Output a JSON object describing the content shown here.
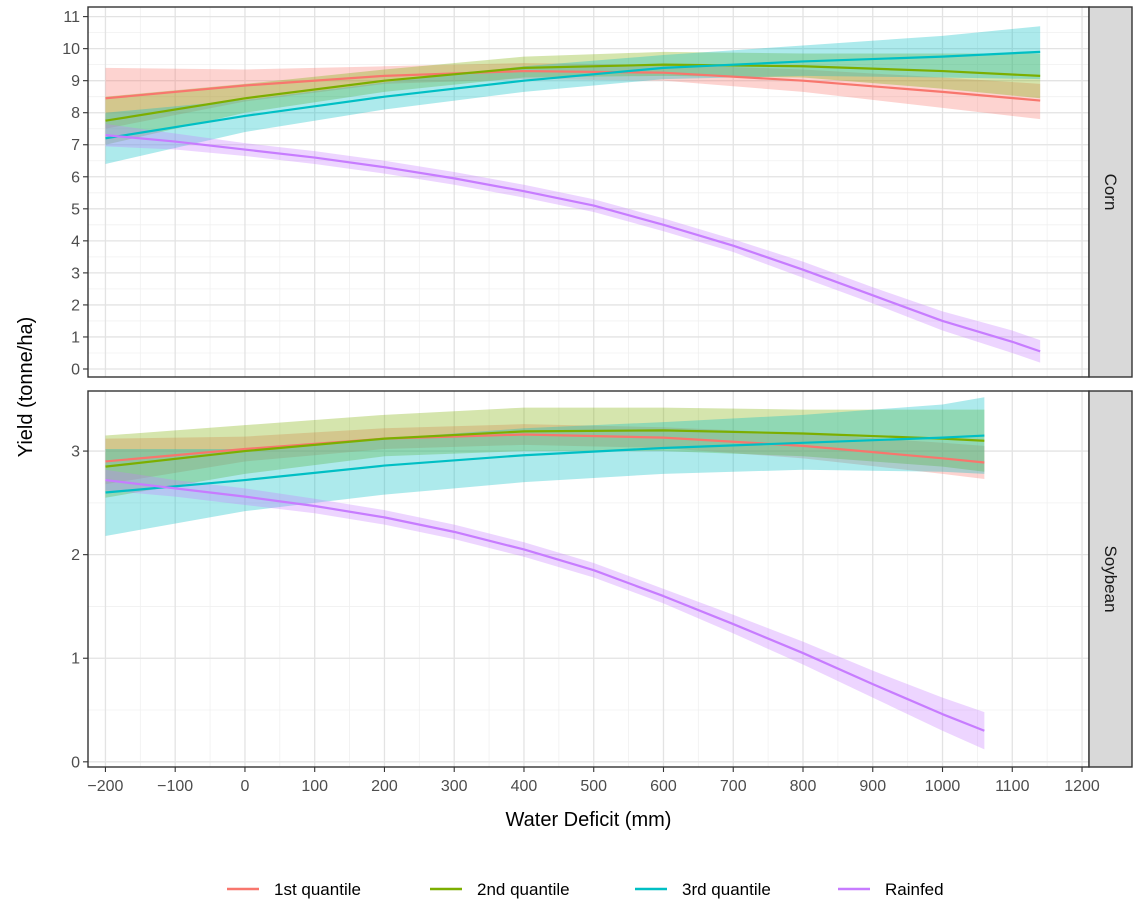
{
  "chart_data": {
    "type": "line",
    "xlabel": "Water Deficit (mm)",
    "ylabel": "Yield (tonne/ha)",
    "x_ticks": [
      -200,
      -100,
      0,
      100,
      200,
      300,
      400,
      500,
      600,
      700,
      800,
      900,
      1000,
      1100,
      1200
    ],
    "x_tick_labels": [
      "−200",
      "−100",
      "0",
      "100",
      "200",
      "300",
      "400",
      "500",
      "600",
      "700",
      "800",
      "900",
      "1000",
      "1100",
      "1200"
    ],
    "xlim": [
      -225,
      1210
    ],
    "grid": true,
    "legend_position": "bottom",
    "colors": {
      "1st quantile": "#F8766D",
      "2nd quantile": "#7CAE00",
      "3rd quantile": "#00BFC4",
      "Rainfed": "#C77CFF"
    },
    "facets": [
      {
        "strip": "Corn",
        "ylim": [
          -0.25,
          11.3
        ],
        "y_ticks": [
          0,
          1,
          2,
          3,
          4,
          5,
          6,
          7,
          8,
          9,
          10,
          11
        ],
        "y_tick_labels": [
          "0",
          "1",
          "2",
          "3",
          "4",
          "5",
          "6",
          "7",
          "8",
          "9",
          "10",
          "11"
        ],
        "series": [
          {
            "name": "1st quantile",
            "x": [
              -200,
              0,
              200,
              400,
              600,
              800,
              1000,
              1140
            ],
            "y": [
              8.45,
              8.85,
              9.15,
              9.3,
              9.25,
              9.0,
              8.65,
              8.38
            ],
            "lower": [
              7.5,
              8.35,
              8.9,
              9.05,
              9.0,
              8.65,
              8.15,
              7.8
            ],
            "upper": [
              9.4,
              9.35,
              9.45,
              9.55,
              9.5,
              9.35,
              9.1,
              8.9
            ]
          },
          {
            "name": "2nd quantile",
            "x": [
              -200,
              0,
              200,
              400,
              600,
              800,
              1000,
              1140
            ],
            "y": [
              7.75,
              8.45,
              9.0,
              9.4,
              9.5,
              9.45,
              9.3,
              9.15
            ],
            "lower": [
              7.0,
              8.0,
              8.65,
              9.1,
              9.15,
              9.1,
              8.75,
              8.45
            ],
            "upper": [
              8.5,
              8.9,
              9.35,
              9.75,
              9.9,
              9.85,
              9.85,
              9.85
            ]
          },
          {
            "name": "3rd quantile",
            "x": [
              -200,
              0,
              200,
              400,
              600,
              800,
              1000,
              1140
            ],
            "y": [
              7.2,
              7.9,
              8.5,
              9.0,
              9.4,
              9.6,
              9.75,
              9.9
            ],
            "lower": [
              6.4,
              7.4,
              8.1,
              8.65,
              9.05,
              9.15,
              9.1,
              9.05
            ],
            "upper": [
              8.0,
              8.4,
              8.95,
              9.45,
              9.8,
              10.1,
              10.4,
              10.7
            ]
          },
          {
            "name": "Rainfed",
            "x": [
              -200,
              -100,
              0,
              100,
              200,
              300,
              400,
              500,
              600,
              700,
              800,
              900,
              1000,
              1100,
              1140
            ],
            "y": [
              7.3,
              7.1,
              6.85,
              6.6,
              6.3,
              5.95,
              5.55,
              5.1,
              4.5,
              3.85,
              3.1,
              2.3,
              1.5,
              0.85,
              0.55
            ],
            "lower": [
              6.95,
              6.85,
              6.65,
              6.4,
              6.1,
              5.75,
              5.35,
              4.9,
              4.3,
              3.65,
              2.85,
              2.05,
              1.2,
              0.5,
              0.2
            ],
            "upper": [
              7.65,
              7.35,
              7.05,
              6.8,
              6.5,
              6.15,
              5.75,
              5.3,
              4.7,
              4.05,
              3.35,
              2.55,
              1.8,
              1.2,
              0.9
            ]
          }
        ]
      },
      {
        "strip": "Soybean",
        "ylim": [
          -0.05,
          3.58
        ],
        "y_ticks": [
          0,
          1,
          2,
          3
        ],
        "y_tick_labels": [
          "0",
          "1",
          "2",
          "3"
        ],
        "series": [
          {
            "name": "1st quantile",
            "x": [
              -200,
              0,
              200,
              400,
              600,
              800,
              1000,
              1060
            ],
            "y": [
              2.9,
              3.02,
              3.12,
              3.16,
              3.13,
              3.05,
              2.93,
              2.89
            ],
            "lower": [
              2.68,
              2.9,
              3.02,
              3.06,
              3.03,
              2.93,
              2.78,
              2.73
            ],
            "upper": [
              3.12,
              3.14,
              3.22,
              3.26,
              3.23,
              3.17,
              3.08,
              3.05
            ]
          },
          {
            "name": "2nd quantile",
            "x": [
              -200,
              0,
              200,
              400,
              600,
              800,
              1000,
              1060
            ],
            "y": [
              2.85,
              3.0,
              3.12,
              3.19,
              3.2,
              3.17,
              3.12,
              3.1
            ],
            "lower": [
              2.55,
              2.78,
              2.95,
              3.0,
              3.0,
              2.95,
              2.85,
              2.8
            ],
            "upper": [
              3.15,
              3.25,
              3.35,
              3.42,
              3.42,
              3.4,
              3.4,
              3.4
            ]
          },
          {
            "name": "3rd quantile",
            "x": [
              -200,
              0,
              200,
              400,
              600,
              800,
              1000,
              1060
            ],
            "y": [
              2.6,
              2.72,
              2.86,
              2.96,
              3.03,
              3.08,
              3.13,
              3.15
            ],
            "lower": [
              2.18,
              2.42,
              2.58,
              2.7,
              2.78,
              2.82,
              2.8,
              2.78
            ],
            "upper": [
              3.02,
              3.02,
              3.12,
              3.22,
              3.28,
              3.35,
              3.45,
              3.52
            ]
          },
          {
            "name": "Rainfed",
            "x": [
              -200,
              -100,
              0,
              100,
              200,
              300,
              400,
              500,
              600,
              700,
              800,
              900,
              1000,
              1060
            ],
            "y": [
              2.72,
              2.64,
              2.56,
              2.47,
              2.36,
              2.22,
              2.05,
              1.85,
              1.6,
              1.33,
              1.05,
              0.75,
              0.46,
              0.3
            ],
            "lower": [
              2.62,
              2.56,
              2.48,
              2.4,
              2.29,
              2.15,
              1.98,
              1.78,
              1.53,
              1.24,
              0.94,
              0.62,
              0.3,
              0.12
            ],
            "upper": [
              2.82,
              2.72,
              2.64,
              2.54,
              2.43,
              2.29,
              2.12,
              1.92,
              1.67,
              1.42,
              1.16,
              0.88,
              0.62,
              0.48
            ]
          }
        ]
      }
    ]
  }
}
